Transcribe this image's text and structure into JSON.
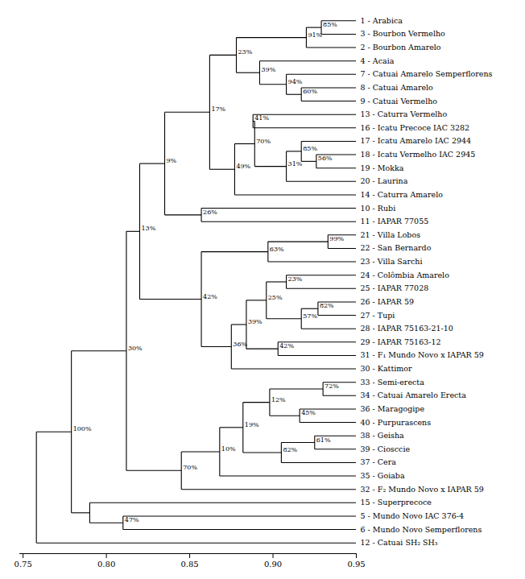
{
  "chart_data": {
    "type": "dendrogram",
    "leaves": [
      "1 - Arabica",
      "3 - Bourbon Vermelho",
      "2 - Bourbon Amarelo",
      "4 - Acaia",
      "7 - Catuai Amarelo Semperflorens",
      "8 - Catuai Amarelo",
      "9 - Catuai Vermelho",
      "13 - Caturra Vermelho",
      "16 - Icatu Precoce IAC 3282",
      "17 - Icatu Amarelo IAC 2944",
      "18 - Icatu Vermelho IAC 2945",
      "19 - Mokka",
      "20 - Laurina",
      "14 - Caturra Amarelo",
      "10 - Rubi",
      "11 - IAPAR 77055",
      "21 - Villa Lobos",
      "22 - San Bernardo",
      "23 - Villa Sarchi",
      "24 - Colômbia Amarelo",
      "25 - IAPAR 77028",
      "26 - IAPAR 59",
      "27 - Tupi",
      "28 - IAPAR 75163-21-10",
      "29 - IAPAR 75163-12",
      "31 - F₁ Mundo Novo x IAPAR 59",
      "30 - Kattimor",
      "33 - Semi-erecta",
      "34 - Catuai Amarelo Erecta",
      "36 - Maragogipe",
      "40 - Purpurascens",
      "38 - Geisha",
      "39 - Ciosccie",
      "37 - Cera",
      "35 - Goiaba",
      "32 - F₂ Mundo Novo x IAPAR 59",
      "15 - Superprecoce",
      "5 - Mundo Novo IAC 376-4",
      "6 - Mundo Novo Semperflorens",
      "12 - Catuai SH₂ SH₃"
    ],
    "leaf_x": 0.95,
    "tree": {
      "x": 0.758,
      "children": [
        {
          "x": 0.779,
          "label": "100%",
          "children": [
            {
              "x": 0.812,
              "label": "30%",
              "children": [
                {
                  "x": 0.82,
                  "label": "13%",
                  "children": [
                    {
                      "x": 0.835,
                      "label": "9%",
                      "children": [
                        {
                          "x": 0.862,
                          "label": "17%",
                          "children": [
                            {
                              "x": 0.878,
                              "label": "23%",
                              "children": [
                                {
                                  "x": 0.92,
                                  "label": "91%",
                                  "children": [
                                    {
                                      "x": 0.929,
                                      "label": "85%",
                                      "children": [
                                        "1 - Arabica",
                                        "3 - Bourbon Vermelho"
                                      ]
                                    },
                                    "2 - Bourbon Amarelo"
                                  ]
                                },
                                {
                                  "x": 0.892,
                                  "label": "39%",
                                  "children": [
                                    "4 - Acaia",
                                    {
                                      "x": 0.908,
                                      "label": "94%",
                                      "children": [
                                        "7 - Catuai Amarelo Semperflorens",
                                        {
                                          "x": 0.917,
                                          "label": "60%",
                                          "children": [
                                            "8 - Catuai Amarelo",
                                            "9 - Catuai Vermelho"
                                          ]
                                        }
                                      ]
                                    }
                                  ]
                                }
                              ]
                            },
                            {
                              "x": 0.877,
                              "label": "49%",
                              "children": [
                                "14 - Caturra Amarelo",
                                {
                                  "x": 0.889,
                                  "label": "70%",
                                  "children": [
                                    {
                                      "x": 0.888,
                                      "label": "41%",
                                      "children": [
                                        "13 - Caturra Vermelho",
                                        "16 - Icatu Precoce IAC 3282"
                                      ]
                                    },
                                    {
                                      "x": 0.908,
                                      "label": "31%",
                                      "children": [
                                        {
                                          "x": 0.917,
                                          "label": "85%",
                                          "children": [
                                            "17 - Icatu Amarelo IAC 2944",
                                            {
                                              "x": 0.926,
                                              "label": "56%",
                                              "children": [
                                                "18 - Icatu Vermelho IAC 2945",
                                                "19 - Mokka"
                                              ]
                                            }
                                          ]
                                        },
                                        "20 - Laurina"
                                      ]
                                    }
                                  ]
                                }
                              ]
                            }
                          ]
                        },
                        {
                          "x": 0.857,
                          "label": "26%",
                          "children": [
                            "10 - Rubi",
                            "11 - IAPAR 77055"
                          ]
                        }
                      ]
                    },
                    {
                      "x": 0.857,
                      "label": "42%",
                      "children": [
                        {
                          "x": 0.897,
                          "label": "63%",
                          "children": [
                            {
                              "x": 0.933,
                              "label": "99%",
                              "children": [
                                "21 - Villa Lobos",
                                "22 - San Bernardo"
                              ]
                            },
                            "23 - Villa Sarchi"
                          ]
                        },
                        {
                          "x": 0.875,
                          "label": "36%",
                          "children": [
                            "30 - Kattimor",
                            {
                              "x": 0.884,
                              "label": "39%",
                              "children": [
                                {
                                  "x": 0.896,
                                  "label": "25%",
                                  "children": [
                                    {
                                      "x": 0.908,
                                      "label": "23%",
                                      "children": [
                                        "24 - Colômbia Amarelo",
                                        "25 - IAPAR 77028"
                                      ]
                                    },
                                    {
                                      "x": 0.917,
                                      "label": "57%",
                                      "children": [
                                        {
                                          "x": 0.927,
                                          "label": "82%",
                                          "children": [
                                            "26 - IAPAR 59",
                                            "27 - Tupi"
                                          ]
                                        },
                                        "28 - IAPAR 75163-21-10"
                                      ]
                                    }
                                  ]
                                },
                                {
                                  "x": 0.903,
                                  "label": "42%",
                                  "children": [
                                    "29 - IAPAR 75163-12",
                                    "31 - F₁ Mundo Novo x IAPAR 59"
                                  ]
                                }
                              ]
                            }
                          ]
                        }
                      ]
                    }
                  ]
                },
                {
                  "x": 0.845,
                  "label": "70%",
                  "children": [
                    "32 - F₂ Mundo Novo x IAPAR 59",
                    {
                      "x": 0.868,
                      "label": "10%",
                      "children": [
                        "35 - Goiaba",
                        {
                          "x": 0.882,
                          "label": "19%",
                          "children": [
                            {
                              "x": 0.898,
                              "label": "12%",
                              "children": [
                                {
                                  "x": 0.93,
                                  "label": "72%",
                                  "children": [
                                    "33 - Semi-erecta",
                                    "34 - Catuai Amarelo Erecta"
                                  ]
                                },
                                {
                                  "x": 0.916,
                                  "label": "45%",
                                  "children": [
                                    "36 - Maragogipe",
                                    "40 - Purpurascens"
                                  ]
                                }
                              ]
                            },
                            {
                              "x": 0.905,
                              "label": "82%",
                              "children": [
                                {
                                  "x": 0.925,
                                  "label": "61%",
                                  "children": [
                                    "38 - Geisha",
                                    "39 - Ciosccie"
                                  ]
                                },
                                "37 - Cera"
                              ]
                            }
                          ]
                        }
                      ]
                    }
                  ]
                }
              ]
            },
            {
              "x": 0.79,
              "children": [
                "15 - Superprecoce",
                {
                  "x": 0.81,
                  "label": "47%",
                  "children": [
                    "5 - Mundo Novo IAC 376-4",
                    "6 - Mundo Novo Semperflorens"
                  ]
                }
              ]
            }
          ]
        },
        "12 - Catuai SH₂ SH₃"
      ]
    },
    "color": "#000000",
    "xlim": [
      0.748,
      0.95
    ],
    "xticks": [
      0.75,
      {
        "value": 0.8,
        "label": "0.80"
      },
      0.85,
      {
        "value": 0.9,
        "label": "0.90"
      },
      0.95
    ]
  }
}
